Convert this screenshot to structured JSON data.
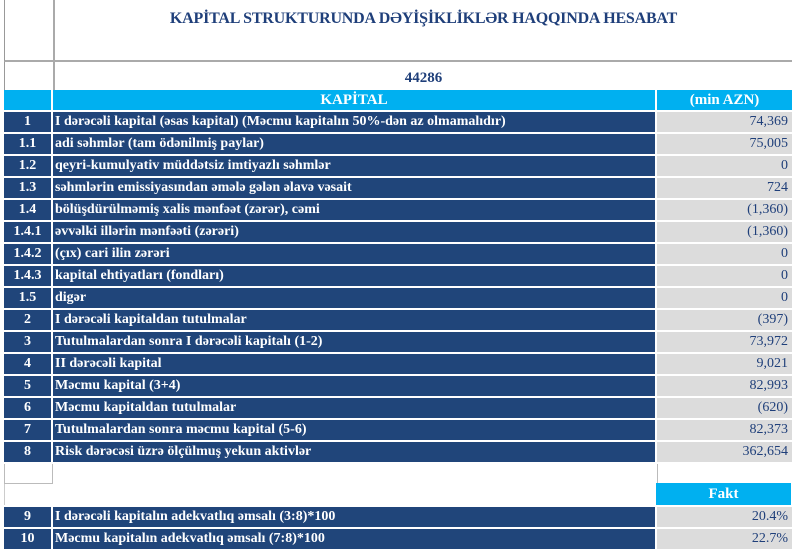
{
  "title": "KAPİTAL STRUKTURUNDA DƏYİŞİKLİKLƏR HAQQINDA HESABAT",
  "date": "44286",
  "header": {
    "label": "KAPİTAL",
    "unit": "(min AZN)"
  },
  "rows": [
    {
      "no": "1",
      "label": "I dərəcəli kapital (əsas kapital) (Məcmu kapitalın 50%-dən az olmamalıdır)",
      "value": "74,369"
    },
    {
      "no": "1.1",
      "label": "adi səhmlər (tam ödənilmiş paylar)",
      "value": "75,005"
    },
    {
      "no": "1.2",
      "label": "qeyri-kumulyativ müddətsiz imtiyazlı səhmlər",
      "value": "0"
    },
    {
      "no": "1.3",
      "label": "səhmlərin emissiyasından əmələ gələn  əlavə vəsait",
      "value": "724"
    },
    {
      "no": "1.4",
      "label": "bölüşdürülməmiş xalis mənfəət (zərər), cəmi",
      "value": "(1,360)"
    },
    {
      "no": "1.4.1",
      "label": "əvvəlki illərin mənfəəti (zərəri)",
      "value": "(1,360)"
    },
    {
      "no": "1.4.2",
      "label": "(çıx) cari ilin zərəri",
      "value": "0"
    },
    {
      "no": "1.4.3",
      "label": "kapital ehtiyatları (fondları)",
      "value": "0"
    },
    {
      "no": "1.5",
      "label": "digər",
      "value": "0"
    },
    {
      "no": "2",
      "label": "I dərəcəli kapitaldan  tutulmalar",
      "value": "(397)"
    },
    {
      "no": "3",
      "label": "Tutulmalardan  sonra I dərəcəli kapitalı (1-2)",
      "value": "73,972"
    },
    {
      "no": "4",
      "label": "II dərəcəli  kapital",
      "value": "9,021"
    },
    {
      "no": "5",
      "label": "Məcmu kapital (3+4)",
      "value": "82,993"
    },
    {
      "no": "6",
      "label": "Məcmu kapitaldan tutulmalar",
      "value": "(620)"
    },
    {
      "no": "7",
      "label": "Tutulmalardan  sonra məcmu kapital (5-6)",
      "value": "82,373"
    },
    {
      "no": "8",
      "label": "Risk dərəcəsi üzrə ölçülmuş  yekun aktivlər",
      "value": "362,654"
    }
  ],
  "fakt_label": "Fakt",
  "ratios": [
    {
      "no": "9",
      "label": "I dərəcəli  kapitalın  adekvatlıq əmsalı (3:8)*100",
      "value": "20.4%"
    },
    {
      "no": "10",
      "label": "Məcmu kapitalın  adekvatlıq  əmsalı (7:8)*100",
      "value": "22.7%"
    }
  ]
}
